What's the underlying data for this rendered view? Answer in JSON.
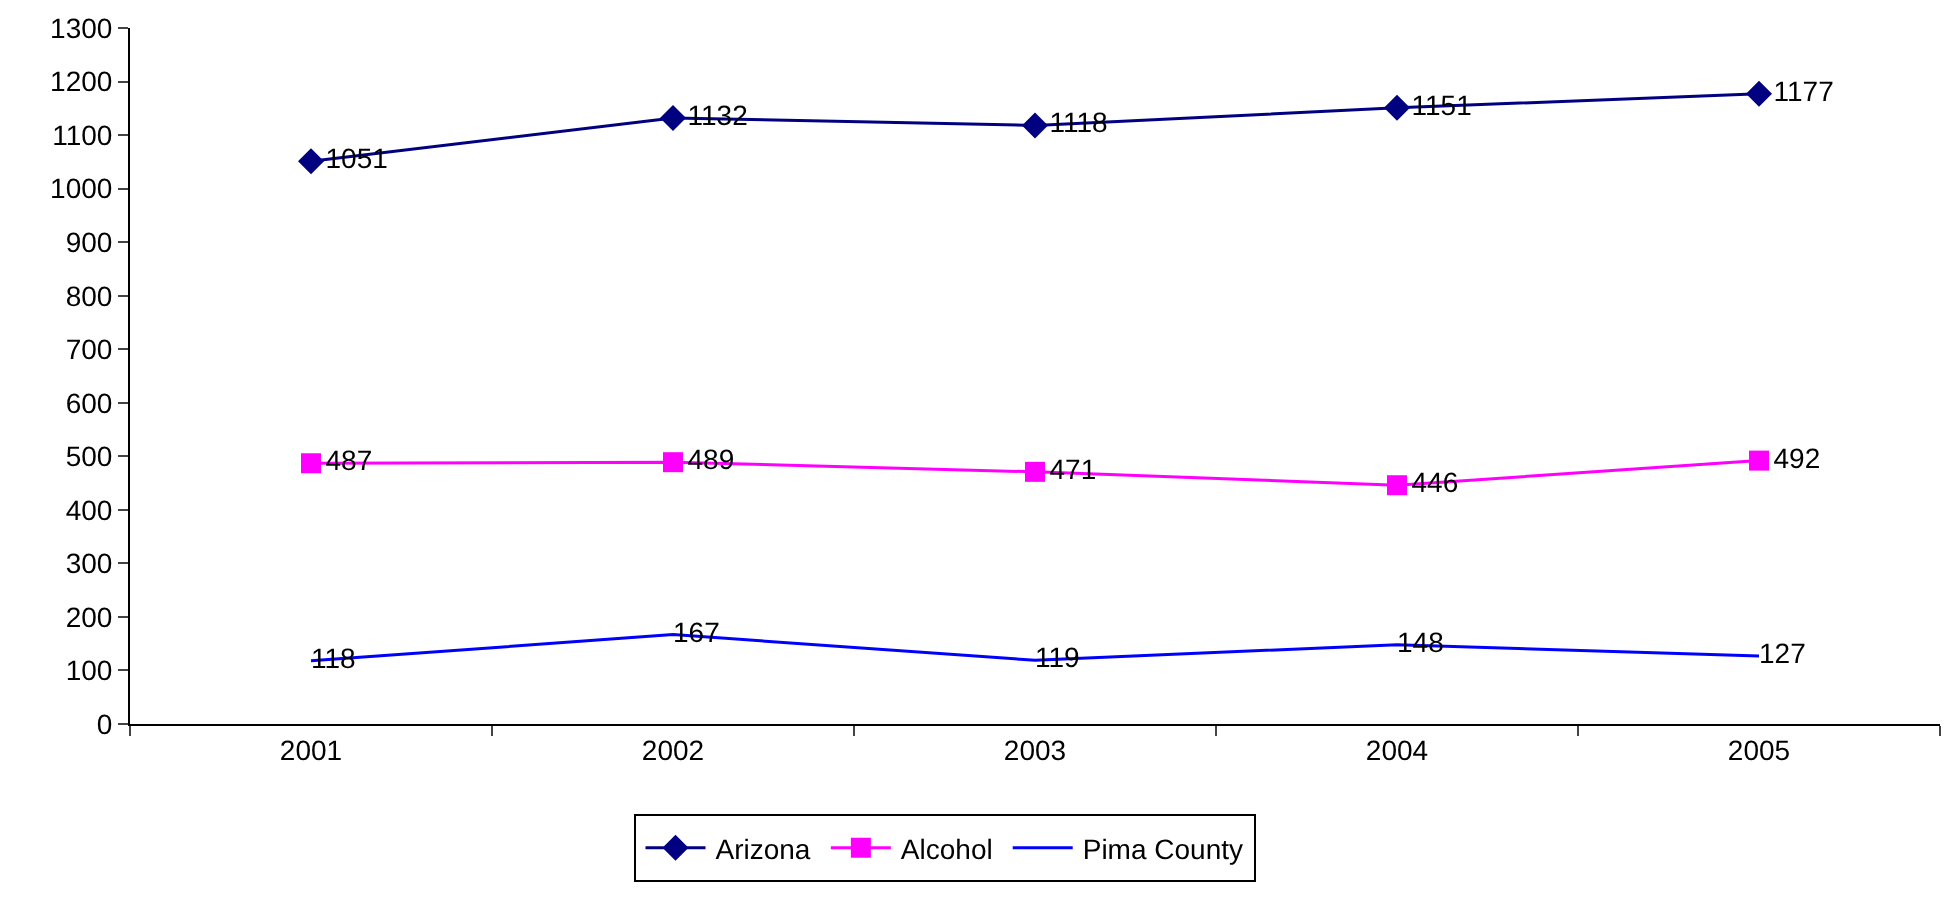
{
  "chart_data": {
    "type": "line",
    "categories": [
      "2001",
      "2002",
      "2003",
      "2004",
      "2005"
    ],
    "series": [
      {
        "name": "Arizona",
        "color": "#000080",
        "marker": "diamond",
        "values": [
          1051,
          1132,
          1118,
          1151,
          1177
        ]
      },
      {
        "name": "Alcohol",
        "color": "#ff00ff",
        "marker": "square",
        "values": [
          487,
          489,
          471,
          446,
          492
        ]
      },
      {
        "name": "Pima County",
        "color": "#0000ff",
        "marker": "none",
        "values": [
          118,
          167,
          119,
          148,
          127
        ]
      }
    ],
    "ylim": [
      0,
      1300
    ],
    "yticks": [
      0,
      100,
      200,
      300,
      400,
      500,
      600,
      700,
      800,
      900,
      1000,
      1100,
      1200,
      1300
    ],
    "data_labels": true,
    "grid": false,
    "legend": "bottom",
    "line_style": "solid"
  }
}
